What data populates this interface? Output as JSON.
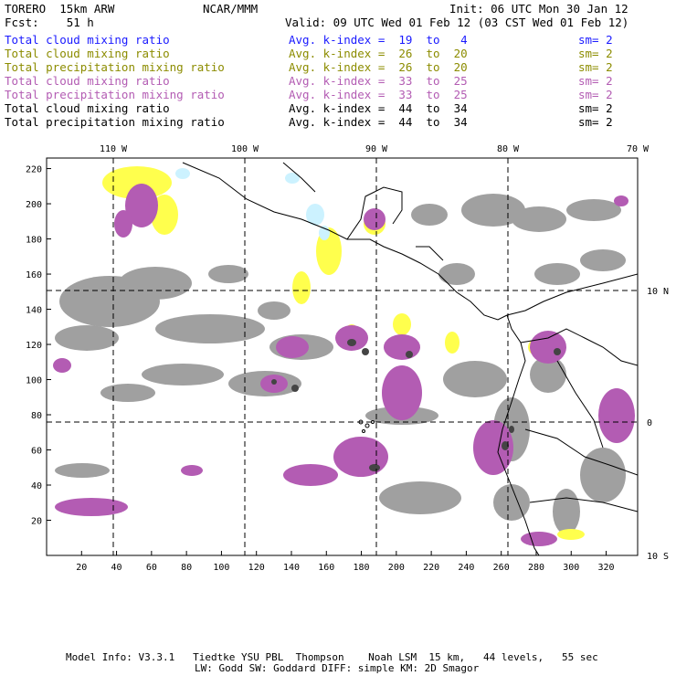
{
  "header": {
    "model": "TORERO  15km ARW",
    "org": "NCAR/MMM",
    "init": "Init: 06 UTC Mon 30 Jan 12",
    "fcst": "Fcst:    51 h",
    "valid": "Valid: 09 UTC Wed 01 Feb 12 (03 CST Wed 01 Feb 12)"
  },
  "legend": [
    {
      "field": "Total cloud mixing ratio",
      "kindex": "Avg. k-index =  19  to   4",
      "sm": "sm= 2",
      "color": "#1a1aff"
    },
    {
      "field": "Total cloud mixing ratio",
      "kindex": "Avg. k-index =  26  to  20",
      "sm": "sm= 2",
      "color": "#8c8c00"
    },
    {
      "field": "Total precipitation mixing ratio",
      "kindex": "Avg. k-index =  26  to  20",
      "sm": "sm= 2",
      "color": "#8c8c00"
    },
    {
      "field": "Total cloud mixing ratio",
      "kindex": "Avg. k-index =  33  to  25",
      "sm": "sm= 2",
      "color": "#b35cb3"
    },
    {
      "field": "Total precipitation mixing ratio",
      "kindex": "Avg. k-index =  33  to  25",
      "sm": "sm= 2",
      "color": "#b35cb3"
    },
    {
      "field": "Total cloud mixing ratio",
      "kindex": "Avg. k-index =  44  to  34",
      "sm": "sm= 2",
      "color": "#000000"
    },
    {
      "field": "Total precipitation mixing ratio",
      "kindex": "Avg. k-index =  44  to  34",
      "sm": "sm= 2",
      "color": "#000000"
    }
  ],
  "map": {
    "lon_labels": [
      "110 W",
      "100 W",
      "90 W",
      "80 W",
      "70 W"
    ],
    "lat_labels": [
      "10 N",
      "0",
      "10 S"
    ],
    "x_ticks": [
      "20",
      "40",
      "60",
      "80",
      "100",
      "120",
      "140",
      "160",
      "180",
      "200",
      "220",
      "240",
      "260",
      "280",
      "300",
      "320"
    ],
    "y_ticks": [
      "220",
      "200",
      "180",
      "160",
      "140",
      "120",
      "100",
      "80",
      "60",
      "40",
      "20"
    ],
    "colors": {
      "yellow": "#ffff4d",
      "cyan": "#ccf2ff",
      "purple": "#b35cb3",
      "gray": "#a0a0a0",
      "dark_gray": "#444444"
    }
  },
  "footer": {
    "line1": "Model Info: V3.3.1   Tiedtke YSU PBL  Thompson    Noah LSM  15 km,   44 levels,   55 sec",
    "line2": "LW: Godd SW: Goddard DIFF: simple KM: 2D Smagor"
  }
}
